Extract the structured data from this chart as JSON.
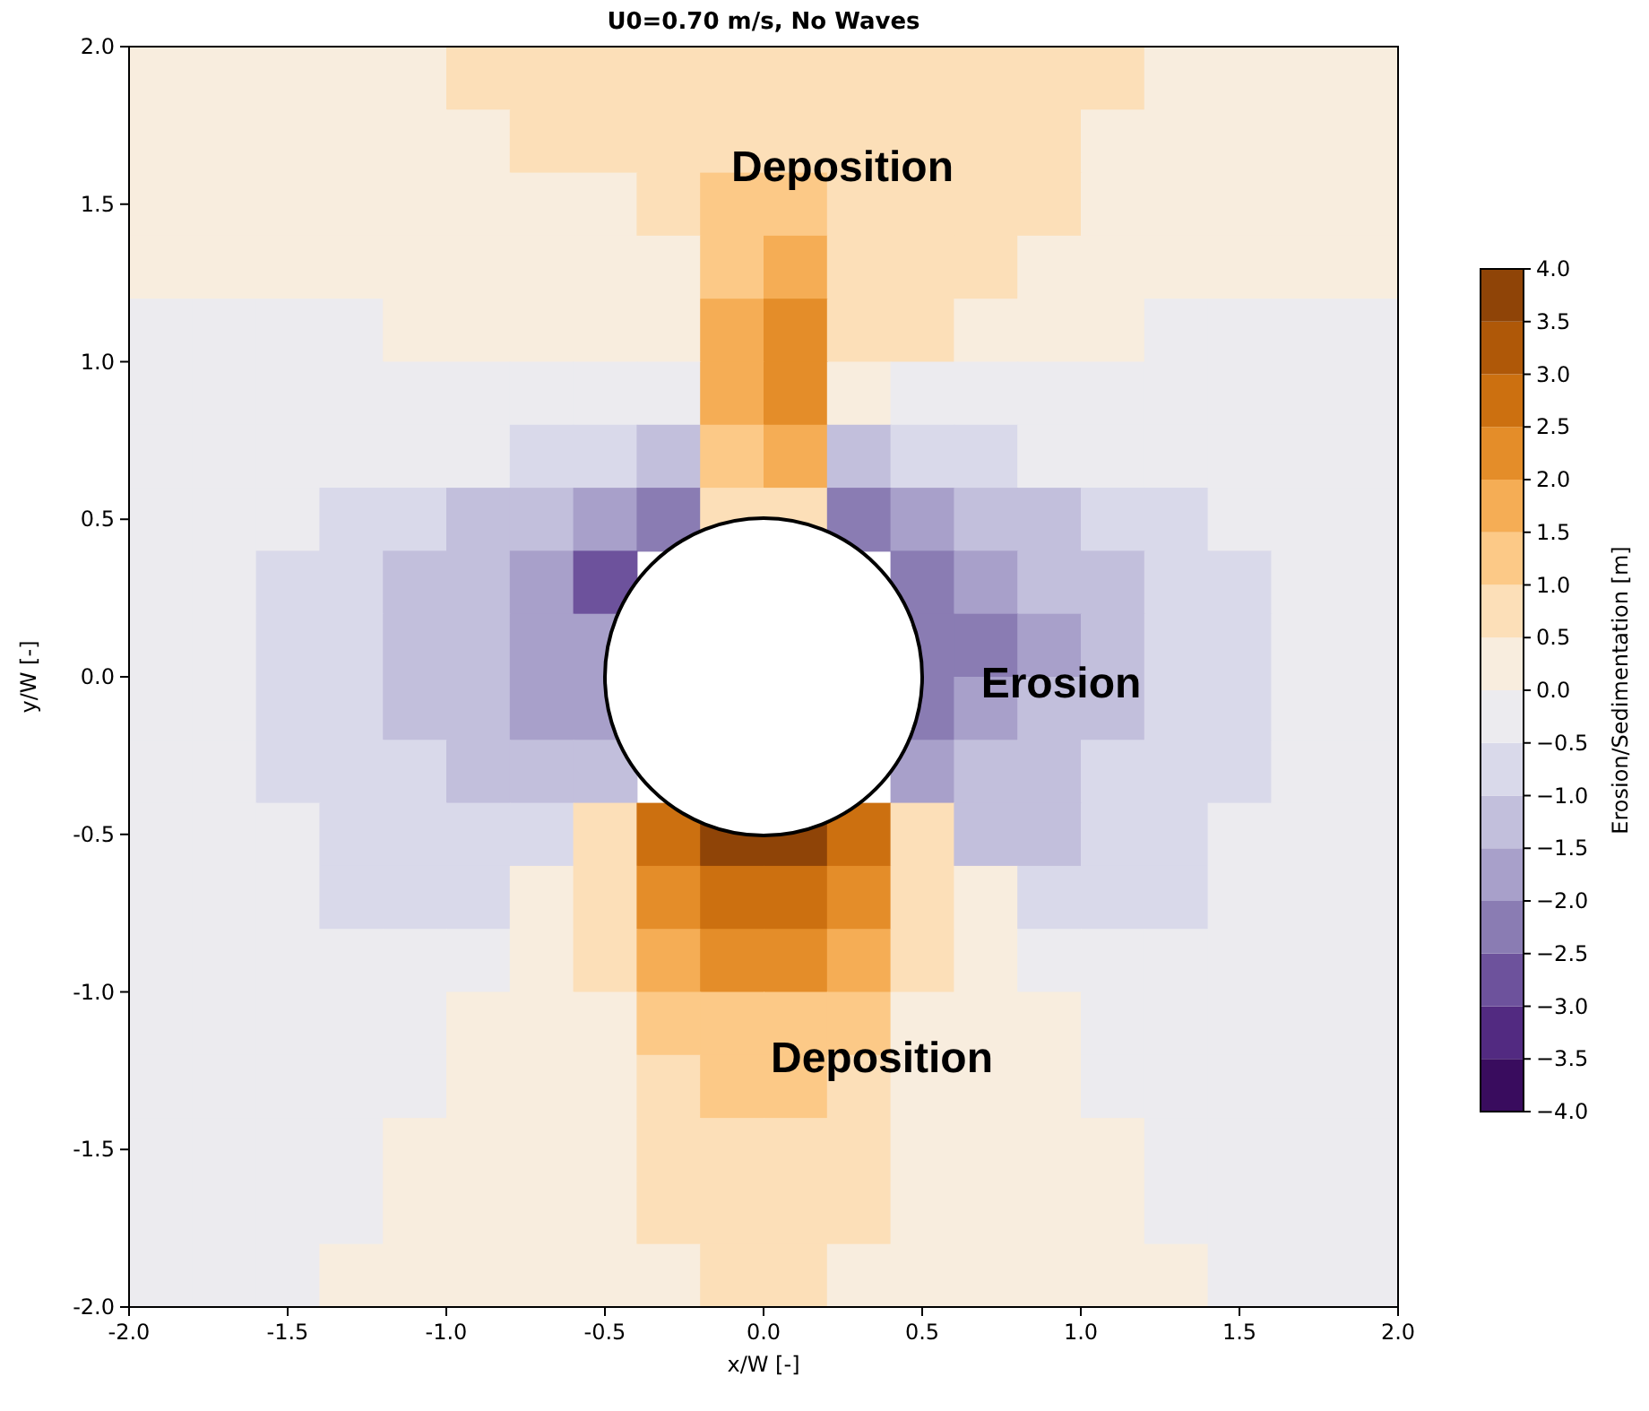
{
  "chart_data": {
    "type": "heatmap",
    "title": "U0=0.70 m/s,  No Waves",
    "xlabel": "x/W [-]",
    "ylabel": "y/W [-]",
    "clabel": "Erosion/Sedimentation [m]",
    "x": [
      -1.9,
      -1.7,
      -1.5,
      -1.3,
      -1.1,
      -0.9,
      -0.7,
      -0.5,
      -0.3,
      -0.1,
      0.1,
      0.3,
      0.5,
      0.7,
      0.9,
      1.1,
      1.3,
      1.5,
      1.7,
      1.9
    ],
    "xlim": [
      -2,
      2
    ],
    "ylim": [
      -2,
      2
    ],
    "xticks": [
      {
        "value": -2,
        "label": "-2.0"
      },
      {
        "value": -1.5,
        "label": "-1.5"
      },
      {
        "value": -1,
        "label": "-1.0"
      },
      {
        "value": -0.5,
        "label": "-0.5"
      },
      {
        "value": 0,
        "label": "0.0"
      },
      {
        "value": 0.5,
        "label": "0.5"
      },
      {
        "value": 1,
        "label": "1.0"
      },
      {
        "value": 1.5,
        "label": "1.5"
      },
      {
        "value": 2,
        "label": "2.0"
      }
    ],
    "yticks": [
      {
        "value": -2,
        "label": "-2.0"
      },
      {
        "value": -1.5,
        "label": "-1.5"
      },
      {
        "value": -1,
        "label": "-1.0"
      },
      {
        "value": -0.5,
        "label": "-0.5"
      },
      {
        "value": 0,
        "label": "0.0"
      },
      {
        "value": 0.5,
        "label": "0.5"
      },
      {
        "value": 1,
        "label": "1.0"
      },
      {
        "value": 1.5,
        "label": "1.5"
      },
      {
        "value": 2,
        "label": "2.0"
      }
    ],
    "clim": [
      -4,
      4
    ],
    "cticks": [
      {
        "value": -4,
        "label": "−4.0"
      },
      {
        "value": -3.5,
        "label": "−3.5"
      },
      {
        "value": -3,
        "label": "−3.0"
      },
      {
        "value": -2.5,
        "label": "−2.5"
      },
      {
        "value": -2,
        "label": "−2.0"
      },
      {
        "value": -1.5,
        "label": "−1.5"
      },
      {
        "value": -1,
        "label": "−1.0"
      },
      {
        "value": -0.5,
        "label": "−0.5"
      },
      {
        "value": 0,
        "label": "0.0"
      },
      {
        "value": 0.5,
        "label": "0.5"
      },
      {
        "value": 1,
        "label": "1.0"
      },
      {
        "value": 1.5,
        "label": "1.5"
      },
      {
        "value": 2,
        "label": "2.0"
      },
      {
        "value": 2.5,
        "label": "2.5"
      },
      {
        "value": 3,
        "label": "3.0"
      },
      {
        "value": 3.5,
        "label": "3.5"
      },
      {
        "value": 4,
        "label": "4.0"
      }
    ],
    "cells": [
      [
        0.25,
        0.25,
        0.25,
        0.25,
        0.25,
        0.75,
        0.75,
        0.75,
        0.75,
        0.75,
        0.75,
        0.75,
        0.75,
        0.75,
        0.75,
        0.75,
        0.25,
        0.25,
        0.25,
        0.25
      ],
      [
        0.25,
        0.25,
        0.25,
        0.25,
        0.25,
        0.25,
        0.75,
        0.75,
        0.75,
        0.75,
        0.75,
        0.75,
        0.75,
        0.75,
        0.75,
        0.25,
        0.25,
        0.25,
        0.25,
        0.25
      ],
      [
        0.25,
        0.25,
        0.25,
        0.25,
        0.25,
        0.25,
        0.25,
        0.25,
        0.75,
        1.25,
        1.25,
        0.75,
        0.75,
        0.75,
        0.75,
        0.25,
        0.25,
        0.25,
        0.25,
        0.25
      ],
      [
        0.25,
        0.25,
        0.25,
        0.25,
        0.25,
        0.25,
        0.25,
        0.25,
        0.25,
        1.25,
        1.75,
        0.75,
        0.75,
        0.75,
        0.25,
        0.25,
        0.25,
        0.25,
        0.25,
        0.25
      ],
      [
        -0.25,
        -0.25,
        -0.25,
        -0.25,
        0.25,
        0.25,
        0.25,
        0.25,
        0.25,
        1.75,
        2.25,
        0.75,
        0.75,
        0.25,
        0.25,
        0.25,
        -0.25,
        -0.25,
        -0.25,
        -0.25
      ],
      [
        -0.25,
        -0.25,
        -0.25,
        -0.25,
        -0.25,
        -0.25,
        -0.25,
        -0.25,
        -0.25,
        1.75,
        2.25,
        0.25,
        -0.25,
        -0.25,
        -0.25,
        -0.25,
        -0.25,
        -0.25,
        -0.25,
        -0.25
      ],
      [
        -0.25,
        -0.25,
        -0.25,
        -0.25,
        -0.25,
        -0.25,
        -0.75,
        -0.75,
        -1.25,
        1.25,
        1.75,
        -1.25,
        -0.75,
        -0.75,
        -0.25,
        -0.25,
        -0.25,
        -0.25,
        -0.25,
        -0.25
      ],
      [
        -0.25,
        -0.25,
        -0.25,
        -0.75,
        -0.75,
        -1.25,
        -1.25,
        -1.75,
        -2.25,
        0.75,
        0.75,
        -2.25,
        -1.75,
        -1.25,
        -1.25,
        -0.75,
        -0.75,
        -0.25,
        -0.25,
        -0.25
      ],
      [
        -0.25,
        -0.25,
        -0.75,
        -0.75,
        -1.25,
        -1.25,
        -1.75,
        -2.75,
        null,
        null,
        null,
        null,
        -2.25,
        -1.75,
        -1.25,
        -1.25,
        -0.75,
        -0.75,
        -0.25,
        -0.25
      ],
      [
        -0.25,
        -0.25,
        -0.75,
        -0.75,
        -1.25,
        -1.25,
        -1.75,
        -1.75,
        null,
        null,
        null,
        null,
        -2.25,
        -2.25,
        -1.75,
        -1.25,
        -0.75,
        -0.75,
        -0.25,
        -0.25
      ],
      [
        -0.25,
        -0.25,
        -0.75,
        -0.75,
        -1.25,
        -1.25,
        -1.75,
        -1.75,
        null,
        null,
        null,
        null,
        -2.25,
        -1.75,
        -1.25,
        -1.25,
        -0.75,
        -0.75,
        -0.25,
        -0.25
      ],
      [
        -0.25,
        -0.25,
        -0.75,
        -0.75,
        -0.75,
        -1.25,
        -1.25,
        -1.25,
        null,
        null,
        null,
        null,
        -1.75,
        -1.25,
        -1.25,
        -0.75,
        -0.75,
        -0.75,
        -0.25,
        -0.25
      ],
      [
        -0.25,
        -0.25,
        -0.25,
        -0.75,
        -0.75,
        -0.75,
        -0.75,
        0.75,
        2.75,
        3.75,
        3.75,
        2.75,
        0.75,
        -1.25,
        -1.25,
        -0.75,
        -0.75,
        -0.25,
        -0.25,
        -0.25
      ],
      [
        -0.25,
        -0.25,
        -0.25,
        -0.75,
        -0.75,
        -0.75,
        0.25,
        0.75,
        2.25,
        2.75,
        2.75,
        2.25,
        0.75,
        0.25,
        -0.75,
        -0.75,
        -0.75,
        -0.25,
        -0.25,
        -0.25
      ],
      [
        -0.25,
        -0.25,
        -0.25,
        -0.25,
        -0.25,
        -0.25,
        0.25,
        0.75,
        1.75,
        2.25,
        2.25,
        1.75,
        0.75,
        0.25,
        -0.25,
        -0.25,
        -0.25,
        -0.25,
        -0.25,
        -0.25
      ],
      [
        -0.25,
        -0.25,
        -0.25,
        -0.25,
        -0.25,
        0.25,
        0.25,
        0.25,
        1.25,
        1.25,
        1.25,
        1.25,
        0.25,
        0.25,
        0.25,
        -0.25,
        -0.25,
        -0.25,
        -0.25,
        -0.25
      ],
      [
        -0.25,
        -0.25,
        -0.25,
        -0.25,
        -0.25,
        0.25,
        0.25,
        0.25,
        0.75,
        1.25,
        1.25,
        0.75,
        0.25,
        0.25,
        0.25,
        -0.25,
        -0.25,
        -0.25,
        -0.25,
        -0.25
      ],
      [
        -0.25,
        -0.25,
        -0.25,
        -0.25,
        0.25,
        0.25,
        0.25,
        0.25,
        0.75,
        0.75,
        0.75,
        0.75,
        0.25,
        0.25,
        0.25,
        0.25,
        -0.25,
        -0.25,
        -0.25,
        -0.25
      ],
      [
        -0.25,
        -0.25,
        -0.25,
        -0.25,
        0.25,
        0.25,
        0.25,
        0.25,
        0.75,
        0.75,
        0.75,
        0.75,
        0.25,
        0.25,
        0.25,
        0.25,
        -0.25,
        -0.25,
        -0.25,
        -0.25
      ],
      [
        -0.25,
        -0.25,
        -0.25,
        0.25,
        0.25,
        0.25,
        0.25,
        0.25,
        0.25,
        0.75,
        0.75,
        0.25,
        0.25,
        0.25,
        0.25,
        0.25,
        0.25,
        -0.25,
        -0.25,
        -0.25
      ]
    ],
    "annotations": [
      "Deposition",
      "Erosion",
      "Deposition"
    ]
  }
}
